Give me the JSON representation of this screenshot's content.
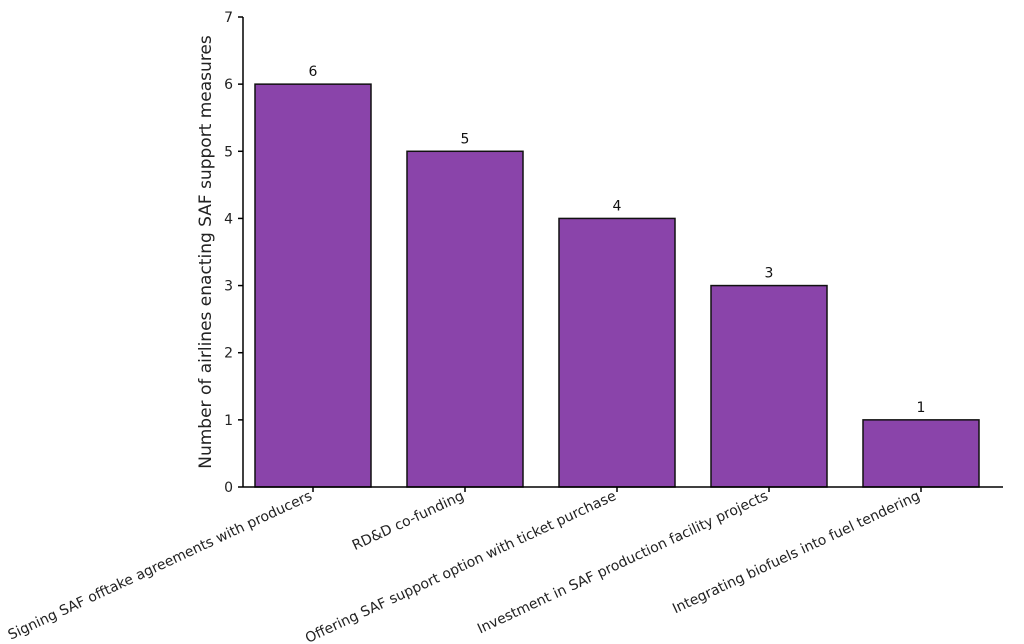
{
  "chart_data": {
    "type": "bar",
    "categories": [
      "Signing SAF offtake agreements with producers",
      "RD&D co-funding",
      "Offering SAF support option with ticket purchase",
      "Investment in SAF production facility projects",
      "Integrating biofuels into fuel tendering"
    ],
    "values": [
      6,
      5,
      4,
      3,
      1
    ],
    "data_labels": [
      "6",
      "5",
      "4",
      "3",
      "1"
    ],
    "title": "",
    "xlabel": "",
    "ylabel": "Number of airlines enacting SAF support measures",
    "ylim": [
      0,
      7
    ],
    "yticks": [
      "0",
      "1",
      "2",
      "3",
      "4",
      "5",
      "6",
      "7"
    ],
    "bar_color": "#8a44aa",
    "grid": false
  }
}
